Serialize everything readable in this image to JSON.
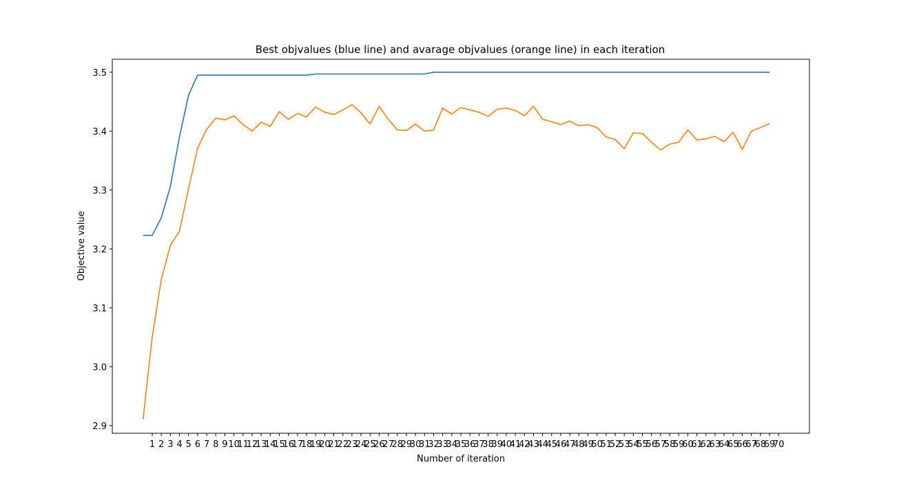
{
  "chart_data": {
    "type": "line",
    "title": "Best objvalues (blue line) and avarage objvalues (orange line) in each iteration",
    "xlabel": "Number of iteration",
    "ylabel": "Objective value",
    "xlim": [
      -3.4,
      73.4
    ],
    "ylim": [
      2.887,
      3.522
    ],
    "xticks": [
      1,
      2,
      3,
      4,
      5,
      6,
      7,
      8,
      9,
      10,
      11,
      12,
      13,
      14,
      15,
      16,
      17,
      18,
      19,
      20,
      21,
      22,
      23,
      24,
      25,
      26,
      27,
      28,
      29,
      30,
      31,
      32,
      33,
      34,
      35,
      36,
      37,
      38,
      39,
      40,
      41,
      42,
      43,
      44,
      45,
      46,
      47,
      48,
      49,
      50,
      51,
      52,
      53,
      54,
      55,
      56,
      57,
      58,
      59,
      60,
      61,
      62,
      63,
      64,
      65,
      66,
      67,
      68,
      69,
      70
    ],
    "yticks": [
      2.9,
      3.0,
      3.1,
      3.2,
      3.3,
      3.4,
      3.5
    ],
    "ytick_labels": [
      "2.9",
      "3.0",
      "3.1",
      "3.2",
      "3.3",
      "3.4",
      "3.5"
    ],
    "grid": false,
    "x": [
      0,
      1,
      2,
      3,
      4,
      5,
      6,
      7,
      8,
      9,
      10,
      11,
      12,
      13,
      14,
      15,
      16,
      17,
      18,
      19,
      20,
      21,
      22,
      23,
      24,
      25,
      26,
      27,
      28,
      29,
      30,
      31,
      32,
      33,
      34,
      35,
      36,
      37,
      38,
      39,
      40,
      41,
      42,
      43,
      44,
      45,
      46,
      47,
      48,
      49,
      50,
      51,
      52,
      53,
      54,
      55,
      56,
      57,
      58,
      59,
      60,
      61,
      62,
      63,
      64,
      65,
      66,
      67,
      68,
      69
    ],
    "series": [
      {
        "color": "#1f77b4",
        "values": [
          3.223,
          3.223,
          3.253,
          3.306,
          3.39,
          3.461,
          3.495,
          3.495,
          3.495,
          3.495,
          3.495,
          3.495,
          3.495,
          3.495,
          3.495,
          3.495,
          3.495,
          3.495,
          3.495,
          3.497,
          3.497,
          3.497,
          3.497,
          3.497,
          3.497,
          3.497,
          3.497,
          3.497,
          3.497,
          3.497,
          3.497,
          3.497,
          3.5,
          3.5,
          3.5,
          3.5,
          3.5,
          3.5,
          3.5,
          3.5,
          3.5,
          3.5,
          3.5,
          3.5,
          3.5,
          3.5,
          3.5,
          3.5,
          3.5,
          3.5,
          3.5,
          3.5,
          3.5,
          3.5,
          3.5,
          3.5,
          3.5,
          3.5,
          3.5,
          3.5,
          3.5,
          3.5,
          3.5,
          3.5,
          3.5,
          3.5,
          3.5,
          3.5,
          3.5,
          3.5
        ]
      },
      {
        "color": "#ff7f0e",
        "values": [
          2.911,
          3.051,
          3.148,
          3.206,
          3.23,
          3.302,
          3.371,
          3.403,
          3.422,
          3.419,
          3.426,
          3.411,
          3.4,
          3.415,
          3.408,
          3.433,
          3.42,
          3.43,
          3.424,
          3.441,
          3.432,
          3.428,
          3.436,
          3.445,
          3.431,
          3.412,
          3.442,
          3.42,
          3.402,
          3.401,
          3.412,
          3.4,
          3.402,
          3.439,
          3.429,
          3.44,
          3.436,
          3.432,
          3.425,
          3.437,
          3.439,
          3.435,
          3.426,
          3.442,
          3.42,
          3.416,
          3.411,
          3.417,
          3.409,
          3.411,
          3.406,
          3.39,
          3.386,
          3.37,
          3.397,
          3.396,
          3.381,
          3.368,
          3.378,
          3.381,
          3.402,
          3.385,
          3.387,
          3.391,
          3.382,
          3.398,
          3.369,
          3.4,
          3.406,
          3.413
        ]
      }
    ]
  }
}
